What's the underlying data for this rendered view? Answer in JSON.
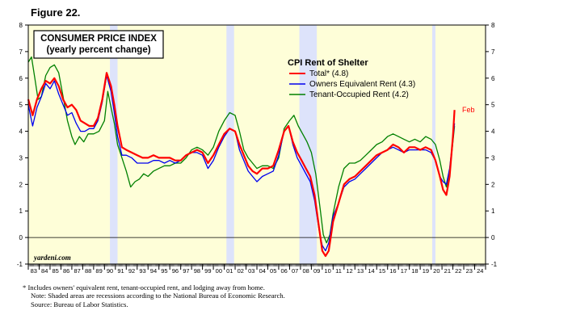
{
  "figure_label": "Figure 22.",
  "chart_data": {
    "type": "line",
    "title": "CONSUMER PRICE INDEX",
    "subtitle": "(yearly percent change)",
    "legend_title": "CPI Rent of Shelter",
    "legend_placement": "top-center",
    "source_tag": "yardeni.com",
    "end_annotation": "Feb",
    "xlim": [
      1983,
      2025
    ],
    "ylim": [
      -1,
      8
    ],
    "y_ticks": [
      "-1",
      "0",
      "1",
      "2",
      "3",
      "4",
      "5",
      "6",
      "7",
      "8"
    ],
    "x_ticks": [
      "83",
      "84",
      "85",
      "86",
      "87",
      "88",
      "89",
      "90",
      "91",
      "92",
      "93",
      "94",
      "95",
      "96",
      "97",
      "98",
      "99",
      "00",
      "01",
      "02",
      "03",
      "04",
      "05",
      "06",
      "07",
      "08",
      "09",
      "10",
      "11",
      "12",
      "13",
      "14",
      "15",
      "16",
      "17",
      "18",
      "19",
      "20",
      "21",
      "22",
      "23",
      "24"
    ],
    "recessions": [
      [
        1990.5,
        1991.2
      ],
      [
        2001.2,
        2001.9
      ],
      [
        2007.9,
        2009.5
      ],
      [
        2020.1,
        2020.4
      ]
    ],
    "zero_line": true,
    "colors": {
      "plot_bg": "#fefed8",
      "recession": "#dde3fb",
      "total": "#ff0000",
      "owners": "#0000ee",
      "tenant": "#008000"
    },
    "series": [
      {
        "name": "Total* (4.8)",
        "color": "#ff0000",
        "points": [
          [
            1983.0,
            5.2
          ],
          [
            1983.4,
            4.6
          ],
          [
            1983.8,
            5.2
          ],
          [
            1984.2,
            5.6
          ],
          [
            1984.6,
            5.9
          ],
          [
            1985.0,
            5.8
          ],
          [
            1985.4,
            6.0
          ],
          [
            1985.8,
            5.7
          ],
          [
            1986.2,
            5.2
          ],
          [
            1986.6,
            4.9
          ],
          [
            1987.0,
            5.0
          ],
          [
            1987.4,
            4.8
          ],
          [
            1987.8,
            4.4
          ],
          [
            1988.2,
            4.3
          ],
          [
            1988.6,
            4.2
          ],
          [
            1989.0,
            4.2
          ],
          [
            1989.4,
            4.5
          ],
          [
            1989.8,
            5.2
          ],
          [
            1990.2,
            6.2
          ],
          [
            1990.6,
            5.7
          ],
          [
            1990.9,
            5.0
          ],
          [
            1991.2,
            4.2
          ],
          [
            1991.6,
            3.4
          ],
          [
            1992.0,
            3.3
          ],
          [
            1992.5,
            3.2
          ],
          [
            1993.0,
            3.1
          ],
          [
            1993.5,
            3.0
          ],
          [
            1994.0,
            3.0
          ],
          [
            1994.5,
            3.1
          ],
          [
            1995.0,
            3.0
          ],
          [
            1995.5,
            3.0
          ],
          [
            1996.0,
            3.0
          ],
          [
            1996.5,
            2.9
          ],
          [
            1997.0,
            2.9
          ],
          [
            1997.5,
            3.1
          ],
          [
            1998.0,
            3.2
          ],
          [
            1998.5,
            3.3
          ],
          [
            1999.0,
            3.2
          ],
          [
            1999.5,
            2.8
          ],
          [
            2000.0,
            3.1
          ],
          [
            2000.5,
            3.5
          ],
          [
            2001.0,
            3.9
          ],
          [
            2001.5,
            4.1
          ],
          [
            2002.0,
            4.0
          ],
          [
            2002.4,
            3.5
          ],
          [
            2002.8,
            3.1
          ],
          [
            2003.2,
            2.7
          ],
          [
            2003.6,
            2.5
          ],
          [
            2004.0,
            2.4
          ],
          [
            2004.5,
            2.6
          ],
          [
            2005.0,
            2.6
          ],
          [
            2005.5,
            2.7
          ],
          [
            2006.0,
            3.3
          ],
          [
            2006.5,
            4.0
          ],
          [
            2006.9,
            4.2
          ],
          [
            2007.3,
            3.6
          ],
          [
            2007.7,
            3.2
          ],
          [
            2008.1,
            2.9
          ],
          [
            2008.5,
            2.6
          ],
          [
            2008.9,
            2.3
          ],
          [
            2009.3,
            1.6
          ],
          [
            2009.7,
            0.4
          ],
          [
            2010.0,
            -0.5
          ],
          [
            2010.3,
            -0.7
          ],
          [
            2010.6,
            -0.5
          ],
          [
            2011.0,
            0.6
          ],
          [
            2011.5,
            1.3
          ],
          [
            2012.0,
            2.0
          ],
          [
            2012.5,
            2.2
          ],
          [
            2013.0,
            2.3
          ],
          [
            2013.5,
            2.5
          ],
          [
            2014.0,
            2.7
          ],
          [
            2014.5,
            2.9
          ],
          [
            2015.0,
            3.1
          ],
          [
            2015.5,
            3.2
          ],
          [
            2016.0,
            3.3
          ],
          [
            2016.5,
            3.5
          ],
          [
            2017.0,
            3.4
          ],
          [
            2017.5,
            3.2
          ],
          [
            2018.0,
            3.4
          ],
          [
            2018.5,
            3.4
          ],
          [
            2019.0,
            3.3
          ],
          [
            2019.5,
            3.4
          ],
          [
            2020.0,
            3.3
          ],
          [
            2020.4,
            2.9
          ],
          [
            2020.8,
            2.3
          ],
          [
            2021.1,
            1.8
          ],
          [
            2021.4,
            1.6
          ],
          [
            2021.7,
            2.3
          ],
          [
            2022.0,
            3.8
          ],
          [
            2022.15,
            4.8
          ]
        ]
      },
      {
        "name": "Owners Equivalent Rent (4.3)",
        "color": "#0000ee",
        "points": [
          [
            1983.0,
            5.0
          ],
          [
            1983.4,
            4.2
          ],
          [
            1983.8,
            4.9
          ],
          [
            1984.2,
            5.3
          ],
          [
            1984.6,
            5.8
          ],
          [
            1985.0,
            5.6
          ],
          [
            1985.4,
            5.9
          ],
          [
            1985.8,
            5.4
          ],
          [
            1986.2,
            5.0
          ],
          [
            1986.6,
            4.6
          ],
          [
            1987.0,
            4.7
          ],
          [
            1987.4,
            4.3
          ],
          [
            1987.8,
            4.0
          ],
          [
            1988.2,
            4.0
          ],
          [
            1988.6,
            4.1
          ],
          [
            1989.0,
            4.1
          ],
          [
            1989.4,
            4.4
          ],
          [
            1989.8,
            5.1
          ],
          [
            1990.2,
            6.1
          ],
          [
            1990.6,
            5.5
          ],
          [
            1990.9,
            4.7
          ],
          [
            1991.2,
            3.8
          ],
          [
            1991.6,
            3.1
          ],
          [
            1992.0,
            3.1
          ],
          [
            1992.5,
            3.0
          ],
          [
            1993.0,
            2.8
          ],
          [
            1993.5,
            2.8
          ],
          [
            1994.0,
            2.8
          ],
          [
            1994.5,
            2.9
          ],
          [
            1995.0,
            2.9
          ],
          [
            1995.5,
            2.8
          ],
          [
            1996.0,
            2.9
          ],
          [
            1996.5,
            2.8
          ],
          [
            1997.0,
            2.9
          ],
          [
            1997.5,
            3.1
          ],
          [
            1998.0,
            3.2
          ],
          [
            1998.5,
            3.2
          ],
          [
            1999.0,
            3.1
          ],
          [
            1999.5,
            2.6
          ],
          [
            2000.0,
            2.9
          ],
          [
            2000.5,
            3.4
          ],
          [
            2001.0,
            3.8
          ],
          [
            2001.5,
            4.1
          ],
          [
            2002.0,
            4.0
          ],
          [
            2002.4,
            3.3
          ],
          [
            2002.8,
            2.9
          ],
          [
            2003.2,
            2.5
          ],
          [
            2003.6,
            2.3
          ],
          [
            2004.0,
            2.1
          ],
          [
            2004.5,
            2.3
          ],
          [
            2005.0,
            2.4
          ],
          [
            2005.5,
            2.5
          ],
          [
            2006.0,
            3.1
          ],
          [
            2006.5,
            4.0
          ],
          [
            2006.9,
            4.2
          ],
          [
            2007.3,
            3.5
          ],
          [
            2007.7,
            3.0
          ],
          [
            2008.1,
            2.7
          ],
          [
            2008.5,
            2.4
          ],
          [
            2008.9,
            2.1
          ],
          [
            2009.3,
            1.4
          ],
          [
            2009.7,
            0.3
          ],
          [
            2010.0,
            -0.3
          ],
          [
            2010.3,
            -0.5
          ],
          [
            2010.6,
            -0.2
          ],
          [
            2011.0,
            0.8
          ],
          [
            2011.5,
            1.3
          ],
          [
            2012.0,
            1.9
          ],
          [
            2012.5,
            2.1
          ],
          [
            2013.0,
            2.2
          ],
          [
            2013.5,
            2.4
          ],
          [
            2014.0,
            2.6
          ],
          [
            2014.5,
            2.8
          ],
          [
            2015.0,
            3.0
          ],
          [
            2015.5,
            3.2
          ],
          [
            2016.0,
            3.3
          ],
          [
            2016.5,
            3.4
          ],
          [
            2017.0,
            3.3
          ],
          [
            2017.5,
            3.2
          ],
          [
            2018.0,
            3.3
          ],
          [
            2018.5,
            3.3
          ],
          [
            2019.0,
            3.3
          ],
          [
            2019.5,
            3.3
          ],
          [
            2020.0,
            3.2
          ],
          [
            2020.4,
            2.9
          ],
          [
            2020.8,
            2.3
          ],
          [
            2021.1,
            2.1
          ],
          [
            2021.4,
            2.0
          ],
          [
            2021.7,
            2.6
          ],
          [
            2022.0,
            3.7
          ],
          [
            2022.15,
            4.3
          ]
        ]
      },
      {
        "name": "Tenant-Occupied Rent (4.2)",
        "color": "#008000",
        "points": [
          [
            1983.0,
            6.6
          ],
          [
            1983.3,
            6.8
          ],
          [
            1983.6,
            6.0
          ],
          [
            1983.9,
            5.2
          ],
          [
            1984.2,
            5.3
          ],
          [
            1984.6,
            6.1
          ],
          [
            1985.0,
            6.4
          ],
          [
            1985.4,
            6.5
          ],
          [
            1985.8,
            6.2
          ],
          [
            1986.2,
            5.3
          ],
          [
            1986.6,
            4.4
          ],
          [
            1987.0,
            3.8
          ],
          [
            1987.3,
            3.5
          ],
          [
            1987.7,
            3.8
          ],
          [
            1988.1,
            3.6
          ],
          [
            1988.5,
            3.9
          ],
          [
            1989.0,
            3.9
          ],
          [
            1989.5,
            4.0
          ],
          [
            1990.0,
            4.4
          ],
          [
            1990.3,
            5.5
          ],
          [
            1990.6,
            4.9
          ],
          [
            1990.9,
            4.3
          ],
          [
            1991.2,
            3.5
          ],
          [
            1991.6,
            3.0
          ],
          [
            1992.0,
            2.5
          ],
          [
            1992.4,
            1.9
          ],
          [
            1992.8,
            2.1
          ],
          [
            1993.2,
            2.2
          ],
          [
            1993.6,
            2.4
          ],
          [
            1994.0,
            2.3
          ],
          [
            1994.5,
            2.5
          ],
          [
            1995.0,
            2.6
          ],
          [
            1995.5,
            2.7
          ],
          [
            1996.0,
            2.7
          ],
          [
            1996.5,
            2.8
          ],
          [
            1997.0,
            2.8
          ],
          [
            1997.5,
            3.0
          ],
          [
            1998.0,
            3.3
          ],
          [
            1998.5,
            3.4
          ],
          [
            1999.0,
            3.3
          ],
          [
            1999.5,
            3.1
          ],
          [
            2000.0,
            3.4
          ],
          [
            2000.5,
            4.0
          ],
          [
            2001.0,
            4.4
          ],
          [
            2001.5,
            4.7
          ],
          [
            2002.0,
            4.6
          ],
          [
            2002.4,
            4.0
          ],
          [
            2002.8,
            3.3
          ],
          [
            2003.2,
            3.0
          ],
          [
            2003.6,
            2.8
          ],
          [
            2004.0,
            2.6
          ],
          [
            2004.5,
            2.7
          ],
          [
            2005.0,
            2.7
          ],
          [
            2005.5,
            2.6
          ],
          [
            2006.0,
            3.0
          ],
          [
            2006.5,
            4.1
          ],
          [
            2007.0,
            4.4
          ],
          [
            2007.4,
            4.6
          ],
          [
            2007.8,
            4.2
          ],
          [
            2008.2,
            3.9
          ],
          [
            2008.6,
            3.6
          ],
          [
            2009.0,
            3.2
          ],
          [
            2009.4,
            2.4
          ],
          [
            2009.8,
            1.1
          ],
          [
            2010.1,
            0.1
          ],
          [
            2010.4,
            -0.2
          ],
          [
            2010.7,
            0.1
          ],
          [
            2011.0,
            0.9
          ],
          [
            2011.5,
            1.9
          ],
          [
            2012.0,
            2.6
          ],
          [
            2012.5,
            2.8
          ],
          [
            2013.0,
            2.8
          ],
          [
            2013.5,
            2.9
          ],
          [
            2014.0,
            3.1
          ],
          [
            2014.5,
            3.3
          ],
          [
            2015.0,
            3.5
          ],
          [
            2015.5,
            3.6
          ],
          [
            2016.0,
            3.8
          ],
          [
            2016.5,
            3.9
          ],
          [
            2017.0,
            3.8
          ],
          [
            2017.5,
            3.7
          ],
          [
            2018.0,
            3.6
          ],
          [
            2018.5,
            3.7
          ],
          [
            2019.0,
            3.6
          ],
          [
            2019.5,
            3.8
          ],
          [
            2020.0,
            3.7
          ],
          [
            2020.4,
            3.5
          ],
          [
            2020.8,
            2.9
          ],
          [
            2021.1,
            2.3
          ],
          [
            2021.4,
            1.9
          ],
          [
            2021.7,
            2.4
          ],
          [
            2022.0,
            3.6
          ],
          [
            2022.15,
            4.2
          ]
        ]
      }
    ]
  },
  "footnotes": [
    "* Includes owners' equivalent rent, tenant-occupied rent, and lodging away from home.",
    "Note: Shaded areas are recessions according to the National Bureau of Economic Research.",
    "Source: Bureau of Labor Statistics."
  ]
}
